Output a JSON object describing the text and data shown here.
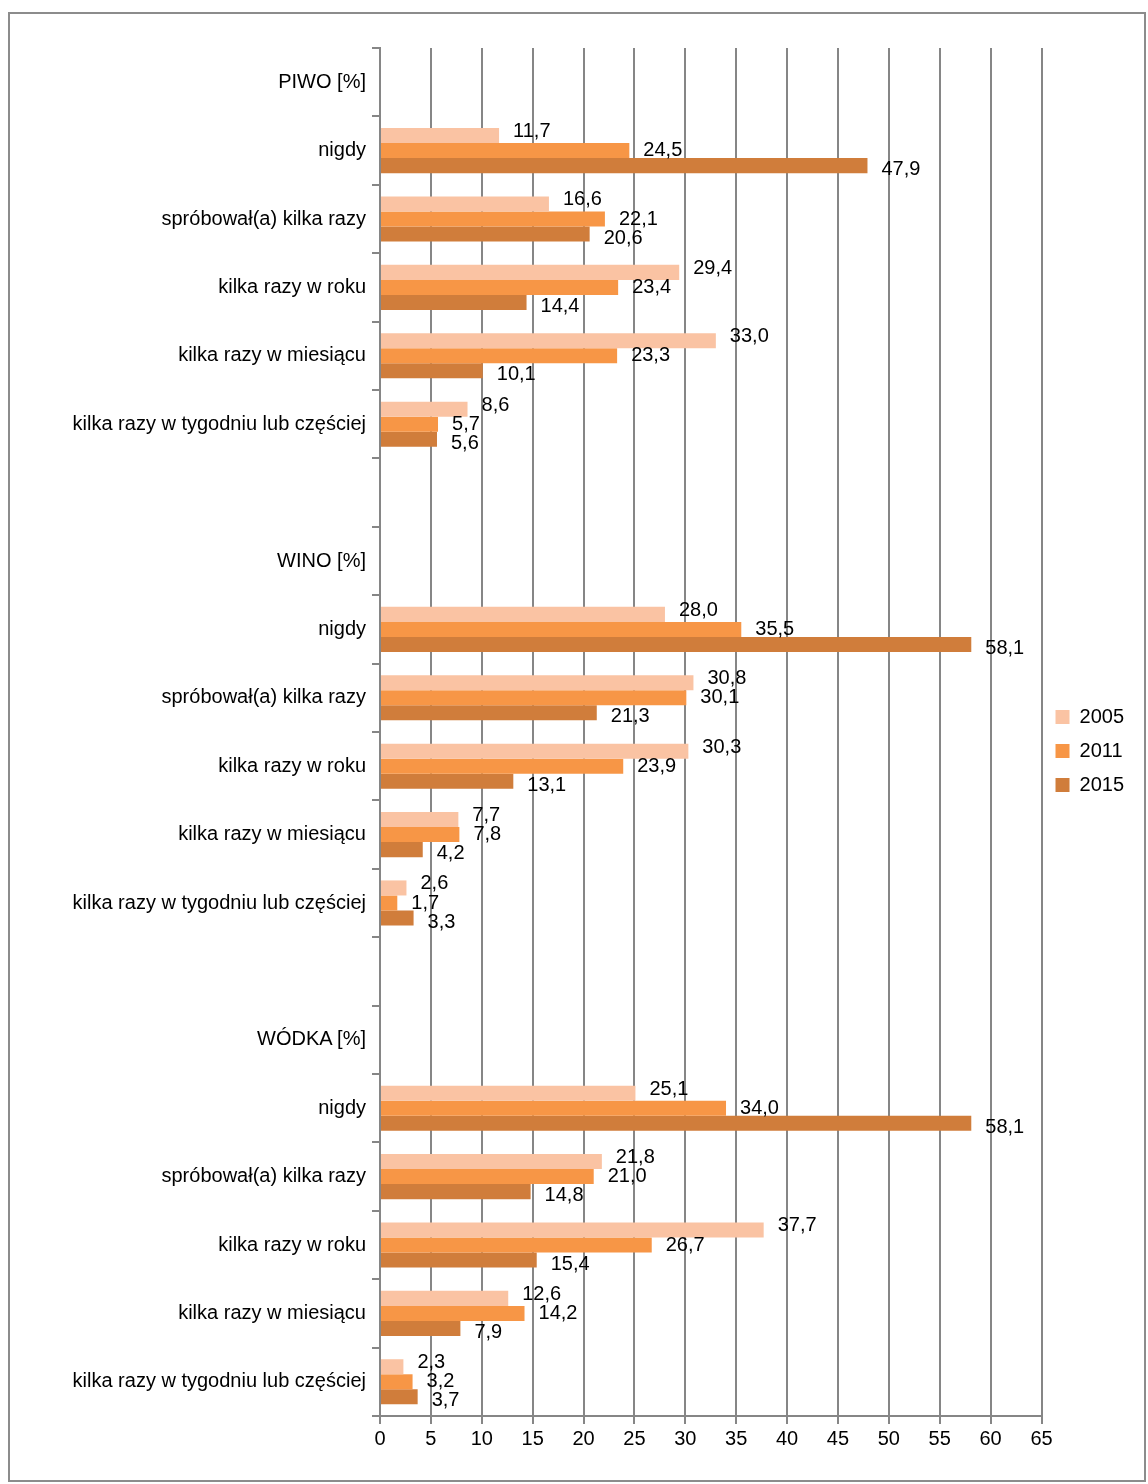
{
  "chart_data": {
    "type": "bar",
    "orientation": "horizontal",
    "categories": [
      "PIWO [%]",
      "nigdy",
      "spróbował(a) kilka razy",
      "kilka razy w roku",
      "kilka razy w miesiącu",
      "kilka razy w tygodniu lub częściej",
      null,
      "WINO [%]",
      "nigdy",
      "spróbował(a) kilka razy",
      "kilka razy w roku",
      "kilka razy w miesiącu",
      "kilka razy w tygodniu lub częściej",
      null,
      "WÓDKA [%]",
      "nigdy",
      "spróbował(a) kilka razy",
      "kilka razy w roku",
      "kilka razy w miesiącu",
      "kilka razy w tygodniu lub częściej"
    ],
    "series": [
      {
        "name": "2005",
        "color": "#fac3a3",
        "values": [
          null,
          11.7,
          16.6,
          29.4,
          33.0,
          8.6,
          null,
          null,
          28.0,
          30.8,
          30.3,
          7.7,
          2.6,
          null,
          null,
          25.1,
          21.8,
          37.7,
          12.6,
          2.3
        ],
        "value_labels": [
          null,
          "11,7",
          "16,6",
          "29,4",
          "33,0",
          "8,6",
          null,
          null,
          "28,0",
          "30,8",
          "30,3",
          "7,7",
          "2,6",
          null,
          null,
          "25,1",
          "21,8",
          "37,7",
          "12,6",
          "2,3"
        ]
      },
      {
        "name": "2011",
        "color": "#f79646",
        "values": [
          null,
          24.5,
          22.1,
          23.4,
          23.3,
          5.7,
          null,
          null,
          35.5,
          30.1,
          23.9,
          7.8,
          1.7,
          null,
          null,
          34.0,
          21.0,
          26.7,
          14.2,
          3.2
        ],
        "value_labels": [
          null,
          "24,5",
          "22,1",
          "23,4",
          "23,3",
          "5,7",
          null,
          null,
          "35,5",
          "30,1",
          "23,9",
          "7,8",
          "1,7",
          null,
          null,
          "34,0",
          "21,0",
          "26,7",
          "14,2",
          "3,2"
        ]
      },
      {
        "name": "2015",
        "color": "#d07d3b",
        "values": [
          null,
          47.9,
          20.6,
          14.4,
          10.1,
          5.6,
          null,
          null,
          58.1,
          21.3,
          13.1,
          4.2,
          3.3,
          null,
          null,
          58.1,
          14.8,
          15.4,
          7.9,
          3.7
        ],
        "value_labels": [
          null,
          "47,9",
          "20,6",
          "14,4",
          "10,1",
          "5,6",
          null,
          null,
          "58,1",
          "21,3",
          "13,1",
          "4,2",
          "3,3",
          null,
          null,
          "58,1",
          "14,8",
          "15,4",
          "7,9",
          "3,7"
        ]
      }
    ],
    "xlim": [
      0,
      65
    ],
    "xticks": [
      0,
      5,
      10,
      15,
      20,
      25,
      30,
      35,
      40,
      45,
      50,
      55,
      60,
      65
    ],
    "grid": "x",
    "legend": "right"
  }
}
